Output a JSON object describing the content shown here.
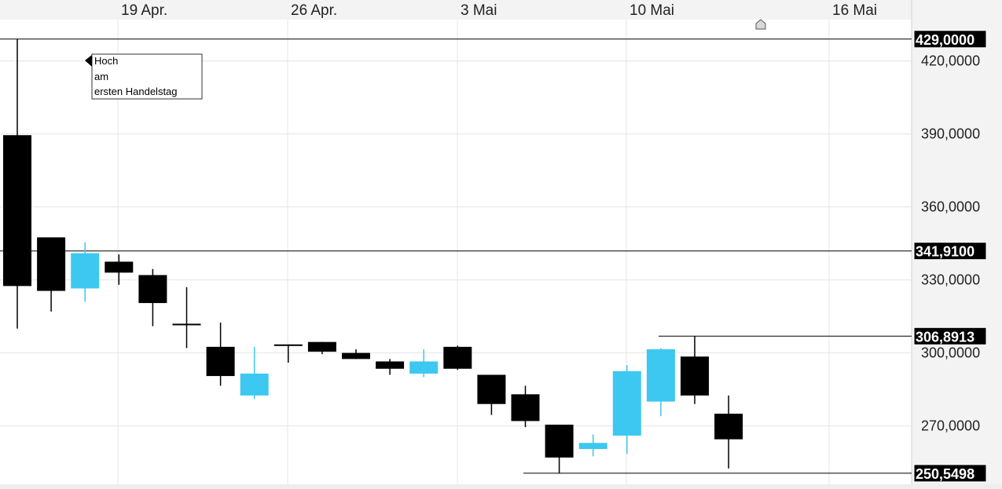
{
  "chart_data": {
    "type": "candlestick",
    "x_labels": [
      "19 Apr.",
      "26 Apr.",
      "3 Mai",
      "10 Mai",
      "16 Mai"
    ],
    "y_ticks": [
      "420,0000",
      "390,0000",
      "360,0000",
      "330,0000",
      "300,0000",
      "270,0000"
    ],
    "y_tick_values": [
      420,
      390,
      360,
      330,
      300,
      270
    ],
    "ylim": [
      246,
      437
    ],
    "grid": true,
    "colors": {
      "up": "#3cc8f0",
      "down": "#000000"
    },
    "levels": [
      {
        "label": "429,0000",
        "value": 429.0
      },
      {
        "label": "341,9100",
        "value": 341.91
      },
      {
        "label": "306,8913",
        "value": 306.8913
      },
      {
        "label": "250,5498",
        "value": 250.5498
      }
    ],
    "annotation": {
      "lines": [
        "Hoch",
        "am",
        "ersten Handelstag"
      ]
    },
    "candles": [
      {
        "open": 389.5,
        "high": 429.0,
        "low": 310.0,
        "close": 327.5
      },
      {
        "open": 347.5,
        "high": 347.5,
        "low": 317.0,
        "close": 325.5
      },
      {
        "open": 326.5,
        "high": 345.5,
        "low": 321.0,
        "close": 341.0
      },
      {
        "open": 337.5,
        "high": 340.5,
        "low": 328.0,
        "close": 333.0
      },
      {
        "open": 332.0,
        "high": 334.5,
        "low": 311.0,
        "close": 320.5
      },
      {
        "open": 312.0,
        "high": 327.0,
        "low": 302.0,
        "close": 311.5
      },
      {
        "open": 302.5,
        "high": 312.5,
        "low": 286.5,
        "close": 290.5
      },
      {
        "open": 282.5,
        "high": 302.5,
        "low": 281.0,
        "close": 291.5
      },
      {
        "open": 303.5,
        "high": 303.5,
        "low": 296.0,
        "close": 303.0
      },
      {
        "open": 304.5,
        "high": 304.5,
        "low": 299.5,
        "close": 300.5
      },
      {
        "open": 300.0,
        "high": 301.5,
        "low": 297.5,
        "close": 297.5
      },
      {
        "open": 296.5,
        "high": 297.5,
        "low": 291.0,
        "close": 293.5
      },
      {
        "open": 291.5,
        "high": 301.5,
        "low": 290.0,
        "close": 296.5
      },
      {
        "open": 302.5,
        "high": 303.0,
        "low": 293.0,
        "close": 293.5
      },
      {
        "open": 291.0,
        "high": 291.0,
        "low": 274.5,
        "close": 279.0
      },
      {
        "open": 283.0,
        "high": 286.5,
        "low": 269.5,
        "close": 272.0
      },
      {
        "open": 270.5,
        "high": 270.5,
        "low": 250.5,
        "close": 257.0
      },
      {
        "open": 260.5,
        "high": 266.5,
        "low": 257.5,
        "close": 263.0
      },
      {
        "open": 266.0,
        "high": 295.0,
        "low": 258.5,
        "close": 292.5
      },
      {
        "open": 280.0,
        "high": 302.0,
        "low": 274.0,
        "close": 301.5
      },
      {
        "open": 298.5,
        "high": 306.9,
        "low": 279.0,
        "close": 282.5
      },
      {
        "open": 275.0,
        "high": 282.5,
        "low": 252.5,
        "close": 264.5
      }
    ]
  }
}
